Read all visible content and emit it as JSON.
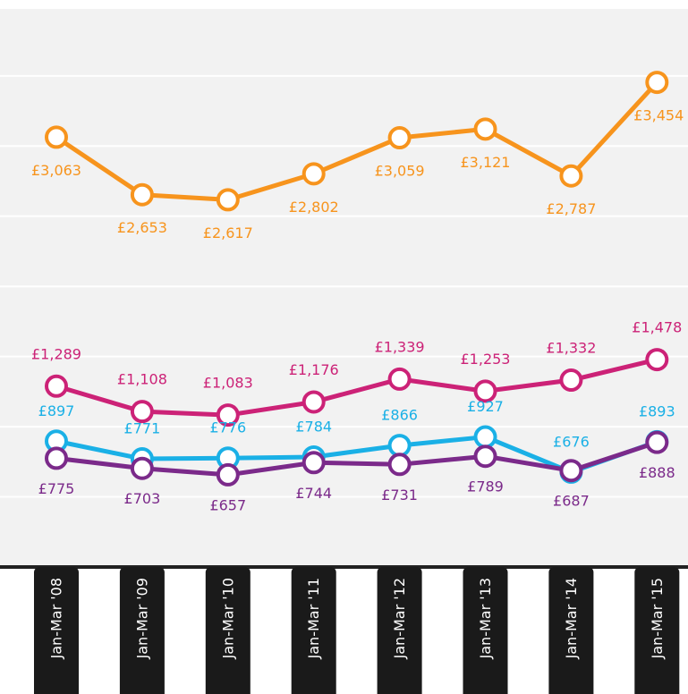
{
  "chart_data": {
    "type": "line",
    "categories": [
      "Jan-Mar '08",
      "Jan-Mar '09",
      "Jan-Mar '10",
      "Jan-Mar '11",
      "Jan-Mar '12",
      "Jan-Mar '13",
      "Jan-Mar '14",
      "Jan-Mar '15"
    ],
    "series": [
      {
        "color": "#f7941d",
        "values": [
          3063,
          2653,
          2617,
          2802,
          3059,
          3121,
          2787,
          3454
        ],
        "value_labels": [
          "£3,063",
          "£2,653",
          "£2,617",
          "£2,802",
          "£3,059",
          "£3,121",
          "£2,787",
          "£3,454"
        ]
      },
      {
        "color": "#cc2277",
        "values": [
          1289,
          1108,
          1083,
          1176,
          1339,
          1253,
          1332,
          1478
        ],
        "value_labels": [
          "£1,289",
          "£1,108",
          "£1,083",
          "£1,176",
          "£1,339",
          "£1,253",
          "£1,332",
          "£1,478"
        ]
      },
      {
        "color": "#1ab0e6",
        "values": [
          897,
          771,
          776,
          784,
          866,
          927,
          676,
          893
        ],
        "value_labels": [
          "£897",
          "£771",
          "£776",
          "£784",
          "£866",
          "£927",
          "£676",
          "£893"
        ]
      },
      {
        "color": "#7b2a8a",
        "values": [
          775,
          703,
          657,
          744,
          731,
          789,
          687,
          888
        ],
        "value_labels": [
          "£775",
          "£703",
          "£657",
          "£744",
          "£731",
          "£789",
          "£687",
          "£888"
        ]
      }
    ],
    "ylim": [
      0,
      4000
    ],
    "yticks": [
      500,
      1000,
      1500,
      2000,
      2500,
      3000,
      3500
    ],
    "grid": true
  }
}
